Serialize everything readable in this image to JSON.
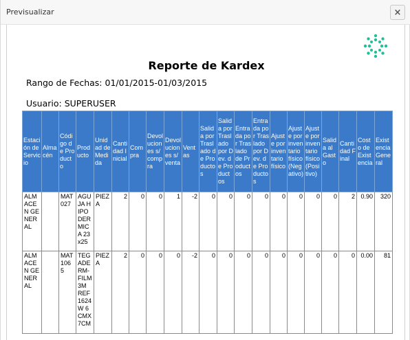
{
  "window": {
    "title": "Previsualizar",
    "close_label": "×"
  },
  "report": {
    "title": "Reporte de Kardex",
    "range_label": "Rango de Fechas: 01/01/2015-01/03/2015",
    "user_label": "Usuario: SUPERUSER"
  },
  "table": {
    "headers": [
      "Estación de Servicio",
      "Almacén",
      "Código de Producto",
      "Producto",
      "Unidad de Medida",
      "Cantidad Inicial",
      "Compra",
      "Devoluciones s/compra",
      "Devoluciones s/venta",
      "Ventas",
      "Salida por Traslado de Productos",
      "Salida por Traslado por Dev. de Productos",
      "Entrada por Traslado de Productos",
      "Entrada por Traslado por Dev. de Productos",
      "Ajuste por inventario físico",
      "Ajuste por inventario físico (Negativo)",
      "Ajuste por inventario físico (Positivo)",
      "Salida al Gasto",
      "Cantidad Final",
      "Costo de Existencia",
      "Existencia General"
    ],
    "rows": [
      [
        "ALMACEN GENERAL",
        "",
        "MAT027",
        "AGUJA HIPODERMICA 23x25",
        "PIEZA",
        "2",
        "0",
        "0",
        "1",
        "-2",
        "0",
        "0",
        "0",
        "0",
        "0",
        "0",
        "0",
        "0",
        "2",
        "0.90",
        "320"
      ],
      [
        "ALMACEN GENERAL",
        "",
        "MAT1065",
        "TEGADERM-FILM 3M REF 1624W 6CMX7CM",
        "PIEZA",
        "2",
        "0",
        "0",
        "0",
        "-2",
        "0",
        "0",
        "0",
        "0",
        "0",
        "0",
        "0",
        "0",
        "0",
        "0.00",
        "81"
      ]
    ]
  },
  "colors": {
    "header_bg": "#3a7ac9",
    "logo": "#1fbf9a"
  },
  "icons": {
    "close": "close-icon",
    "logo": "company-logo-icon"
  }
}
